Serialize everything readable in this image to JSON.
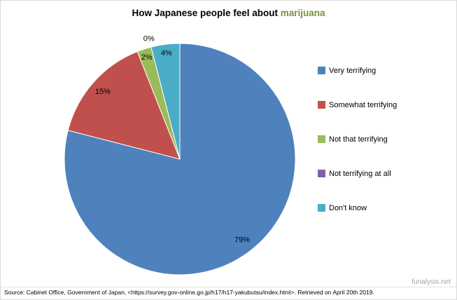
{
  "title": {
    "main": "How Japanese people feel about ",
    "highlight": "marijuana",
    "highlight_color": "#77933C"
  },
  "chart_data": {
    "type": "pie",
    "title": "How Japanese people feel about marijuana",
    "categories": [
      "Very terrifying",
      "Somewhat terrifying",
      "Not that terrifying",
      "Not terrifying at all",
      "Don't know"
    ],
    "values": [
      79,
      15,
      2,
      0,
      4
    ],
    "unit": "%",
    "colors": [
      "#4F81BD",
      "#C0504D",
      "#9BBB59",
      "#8064A2",
      "#4BACC6"
    ],
    "start_angle_deg": 0,
    "direction": "clockwise",
    "legend_position": "right",
    "label_radius": [
      0.88,
      0.89,
      0.93,
      1.08,
      0.93
    ]
  },
  "footer": {
    "source": "Source: Cabinet Office, Government of Japan, <https://survey.gov-online.go.jp/h17/h17-yakubutsu/index.html>.  Retrieved on April 20th 2019.",
    "watermark": "funalysis.net"
  }
}
